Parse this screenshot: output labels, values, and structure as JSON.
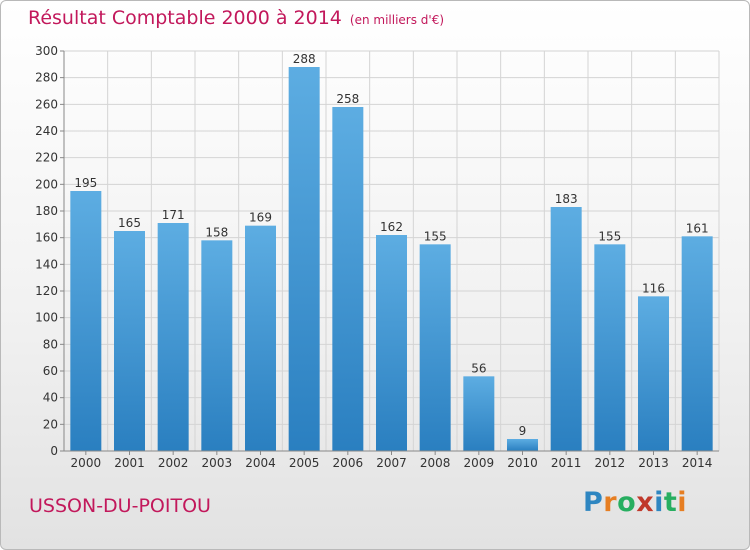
{
  "title": "Résultat Comptable 2000 à 2014",
  "unit_note": "(en milliers d'€)",
  "commune": "USSON-DU-POITOU",
  "logo": {
    "letters": [
      "P",
      "r",
      "o",
      "x",
      "i",
      "t",
      "i"
    ],
    "colors": [
      "#2e86c1",
      "#e67e22",
      "#27ae60",
      "#c0392b",
      "#2e86c1",
      "#27ae60",
      "#e67e22"
    ]
  },
  "colors": {
    "bar_light": "#5dade2",
    "bar_dark": "#2a7fc0",
    "title": "#c2185b"
  },
  "chart_data": {
    "type": "bar",
    "categories": [
      "2000",
      "2001",
      "2002",
      "2003",
      "2004",
      "2005",
      "2006",
      "2007",
      "2008",
      "2009",
      "2010",
      "2011",
      "2012",
      "2013",
      "2014"
    ],
    "values": [
      195,
      165,
      171,
      158,
      169,
      288,
      258,
      162,
      155,
      56,
      9,
      183,
      155,
      116,
      161
    ],
    "ylim": [
      0,
      300
    ],
    "yticks": [
      0,
      20,
      40,
      60,
      80,
      100,
      120,
      140,
      160,
      180,
      200,
      220,
      240,
      260,
      280,
      300
    ],
    "grid": true,
    "xlabel": "",
    "ylabel": ""
  }
}
